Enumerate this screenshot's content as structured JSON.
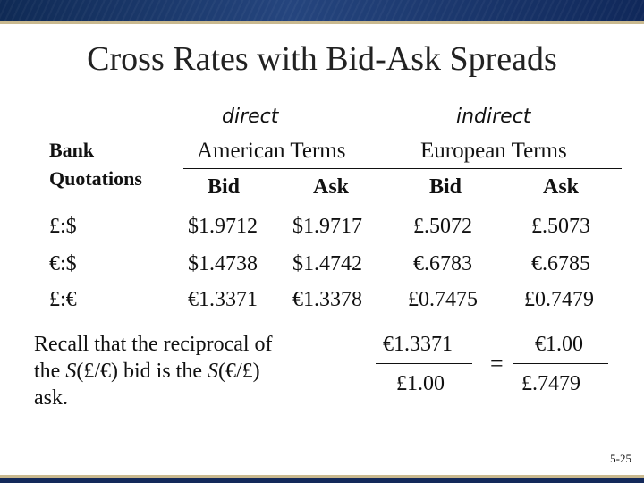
{
  "slide": {
    "title": "Cross Rates with Bid-Ask Spreads",
    "page_number": "5-25"
  },
  "table": {
    "row_header_label_line1": "Bank",
    "row_header_label_line2": "Quotations",
    "groups": [
      {
        "annotation": "direct",
        "label": "American Terms"
      },
      {
        "annotation": "indirect",
        "label": "European Terms"
      }
    ],
    "columns": [
      "Bid",
      "Ask",
      "Bid",
      "Ask"
    ],
    "rows": [
      {
        "label": "£:$",
        "values": [
          "$1.9712",
          "$1.9717",
          "£.5072",
          "£.5073"
        ]
      },
      {
        "label": "€:$",
        "values": [
          "$1.4738",
          "$1.4742",
          "€.6783",
          "€.6785"
        ]
      },
      {
        "label": "£:€",
        "values": [
          "€1.3371",
          "€1.3378",
          "£0.7475",
          "£0.7479"
        ]
      }
    ]
  },
  "note": {
    "line1": "Recall that the reciprocal of",
    "line2_pre": "the ",
    "line2_s1": "S",
    "line2_mid": "(£/€) bid is the ",
    "line2_s2": "S",
    "line2_post": "(€/£)",
    "line3": "ask."
  },
  "equation": {
    "left_numerator": "€1.3371",
    "left_denominator": "£1.00",
    "equals": "=",
    "right_numerator": "€1.00",
    "right_denominator": "£.7479"
  }
}
